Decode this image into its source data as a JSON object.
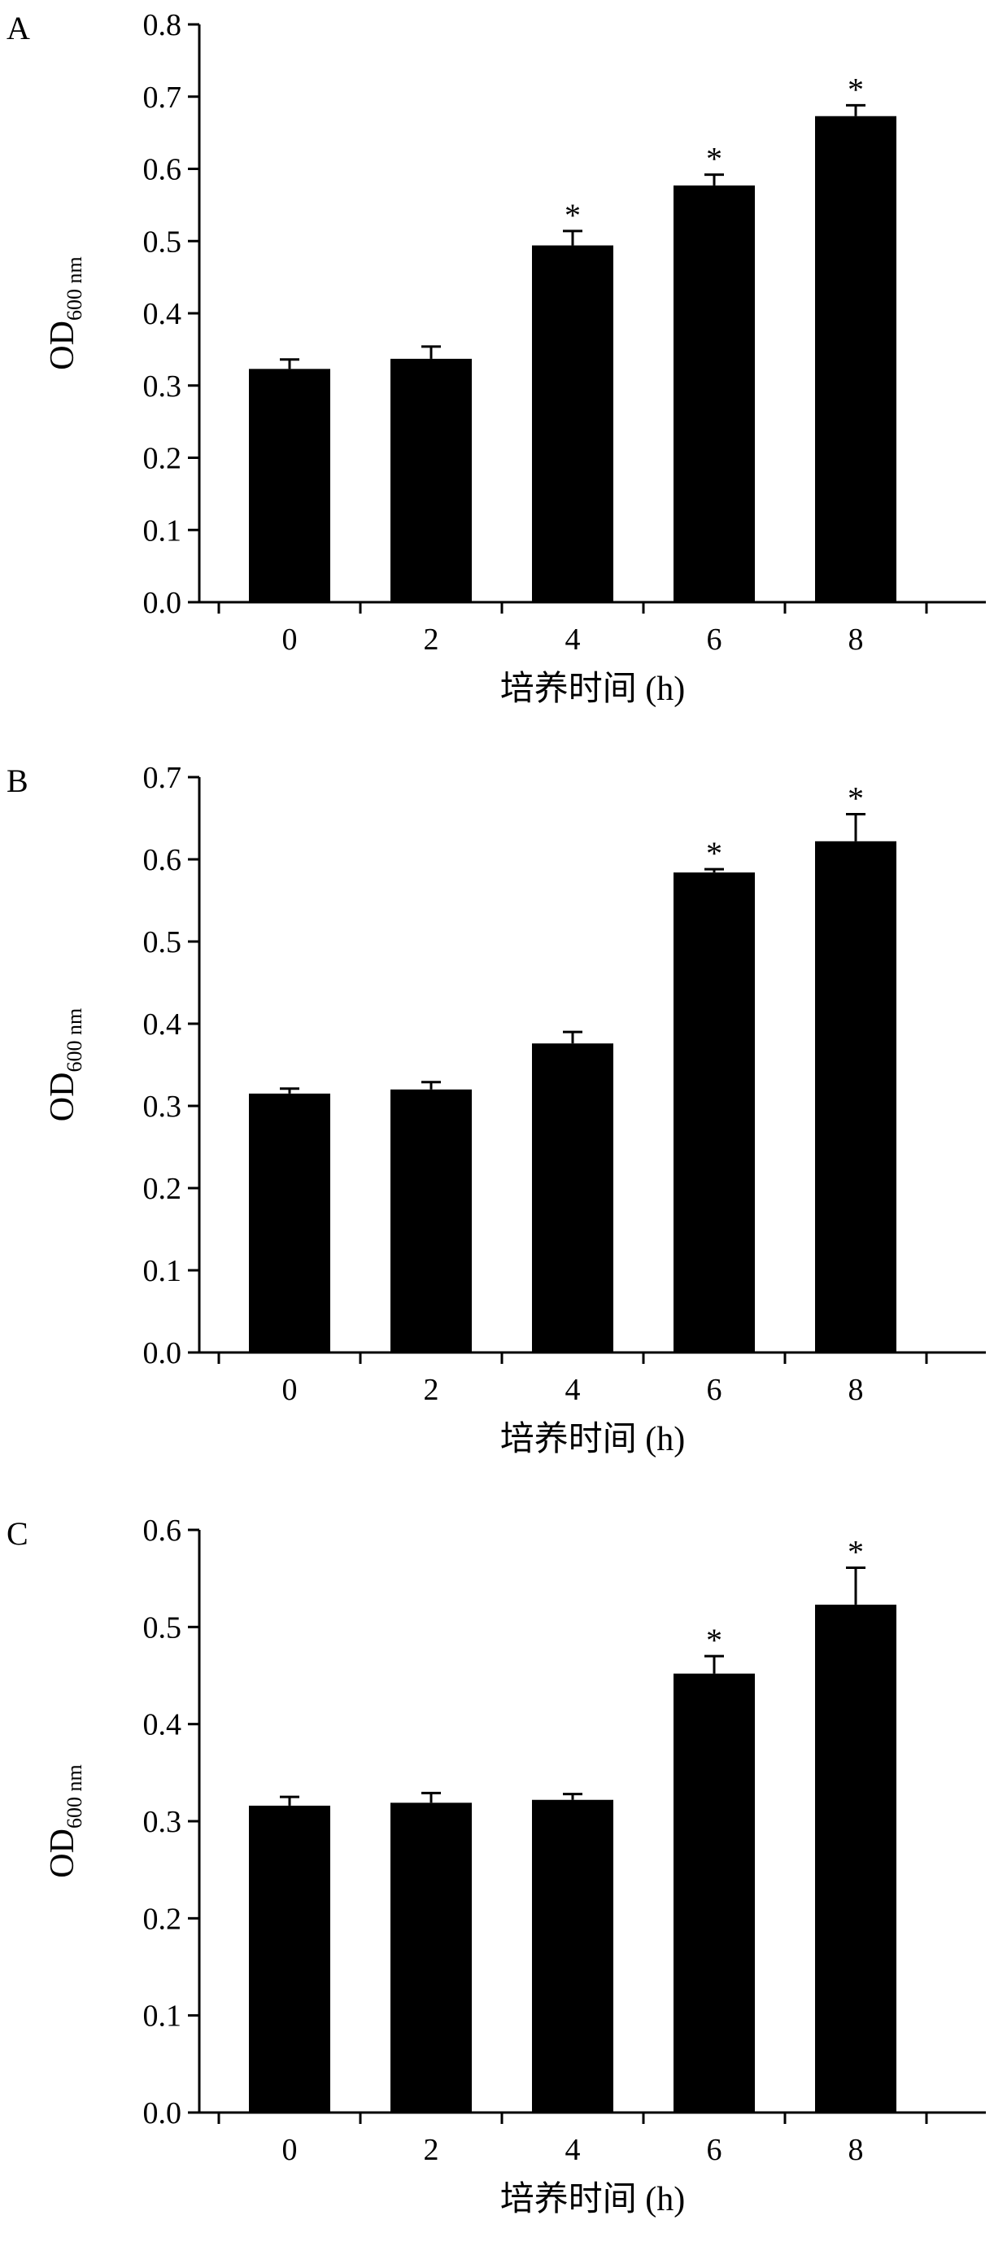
{
  "colors": {
    "bar": "#000000",
    "axis": "#000000",
    "background": "#ffffff"
  },
  "chart_data": [
    {
      "panel_label": "A",
      "type": "bar",
      "categories": [
        "0",
        "2",
        "4",
        "6",
        "8"
      ],
      "values": [
        0.323,
        0.337,
        0.494,
        0.577,
        0.673
      ],
      "errors": [
        0.013,
        0.017,
        0.02,
        0.015,
        0.015
      ],
      "significance": [
        "",
        "",
        "*",
        "*",
        "*"
      ],
      "ylim": [
        0,
        0.8
      ],
      "yticks": [
        "0.0",
        "0.1",
        "0.2",
        "0.3",
        "0.4",
        "0.5",
        "0.6",
        "0.7",
        "0.8"
      ],
      "ylabel": "OD",
      "ylabel_subscript": "600 nm",
      "xlabel": "培养时间 (h)",
      "grid": false,
      "legend": "none"
    },
    {
      "panel_label": "B",
      "type": "bar",
      "categories": [
        "0",
        "2",
        "4",
        "6",
        "8"
      ],
      "values": [
        0.315,
        0.32,
        0.376,
        0.584,
        0.622
      ],
      "errors": [
        0.006,
        0.009,
        0.014,
        0.004,
        0.033
      ],
      "significance": [
        "",
        "",
        "",
        "*",
        "*"
      ],
      "ylim": [
        0,
        0.7
      ],
      "yticks": [
        "0.0",
        "0.1",
        "0.2",
        "0.3",
        "0.4",
        "0.5",
        "0.6",
        "0.7"
      ],
      "ylabel": "OD",
      "ylabel_subscript": "600 nm",
      "xlabel": "培养时间 (h)",
      "grid": false,
      "legend": "none"
    },
    {
      "panel_label": "C",
      "type": "bar",
      "categories": [
        "0",
        "2",
        "4",
        "6",
        "8"
      ],
      "values": [
        0.316,
        0.319,
        0.322,
        0.452,
        0.523
      ],
      "errors": [
        0.009,
        0.01,
        0.006,
        0.018,
        0.038
      ],
      "significance": [
        "",
        "",
        "",
        "*",
        "*"
      ],
      "ylim": [
        0,
        0.6
      ],
      "yticks": [
        "0.0",
        "0.1",
        "0.2",
        "0.3",
        "0.4",
        "0.5",
        "0.6"
      ],
      "ylabel": "OD",
      "ylabel_subscript": "600 nm",
      "xlabel": "培养时间 (h)",
      "grid": false,
      "legend": "none"
    }
  ]
}
